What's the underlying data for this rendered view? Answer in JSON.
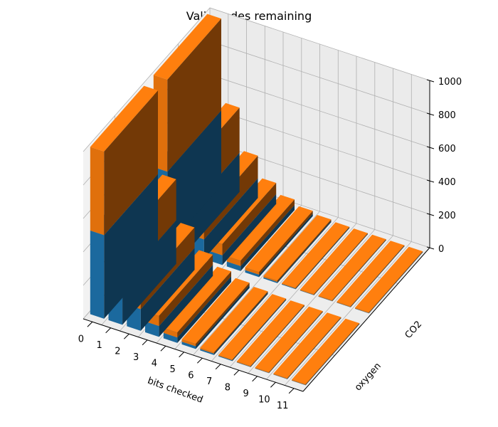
{
  "chart_data": {
    "type": "bar",
    "title": "Valid codes remaining",
    "xlabel": "bits checked",
    "ylabel": "",
    "zlabel": "",
    "categories": [
      "0",
      "1",
      "2",
      "3",
      "4",
      "5",
      "6",
      "7",
      "8",
      "9",
      "10",
      "11"
    ],
    "rows": [
      "oxygen",
      "CO2"
    ],
    "zlim": [
      0,
      1000
    ],
    "zticks": [
      "0",
      "200",
      "400",
      "600",
      "800",
      "1000"
    ],
    "series": [
      {
        "name": "oxygen",
        "values": [
          1000,
          520,
          260,
          130,
          66,
          33,
          17,
          9,
          5,
          3,
          2,
          1
        ],
        "color": "#1f77b4"
      },
      {
        "name": "CO2",
        "values": [
          1000,
          490,
          246,
          122,
          60,
          29,
          14,
          7,
          4,
          2,
          1,
          1
        ],
        "color": "#ff7f0e"
      }
    ],
    "grid": true
  }
}
